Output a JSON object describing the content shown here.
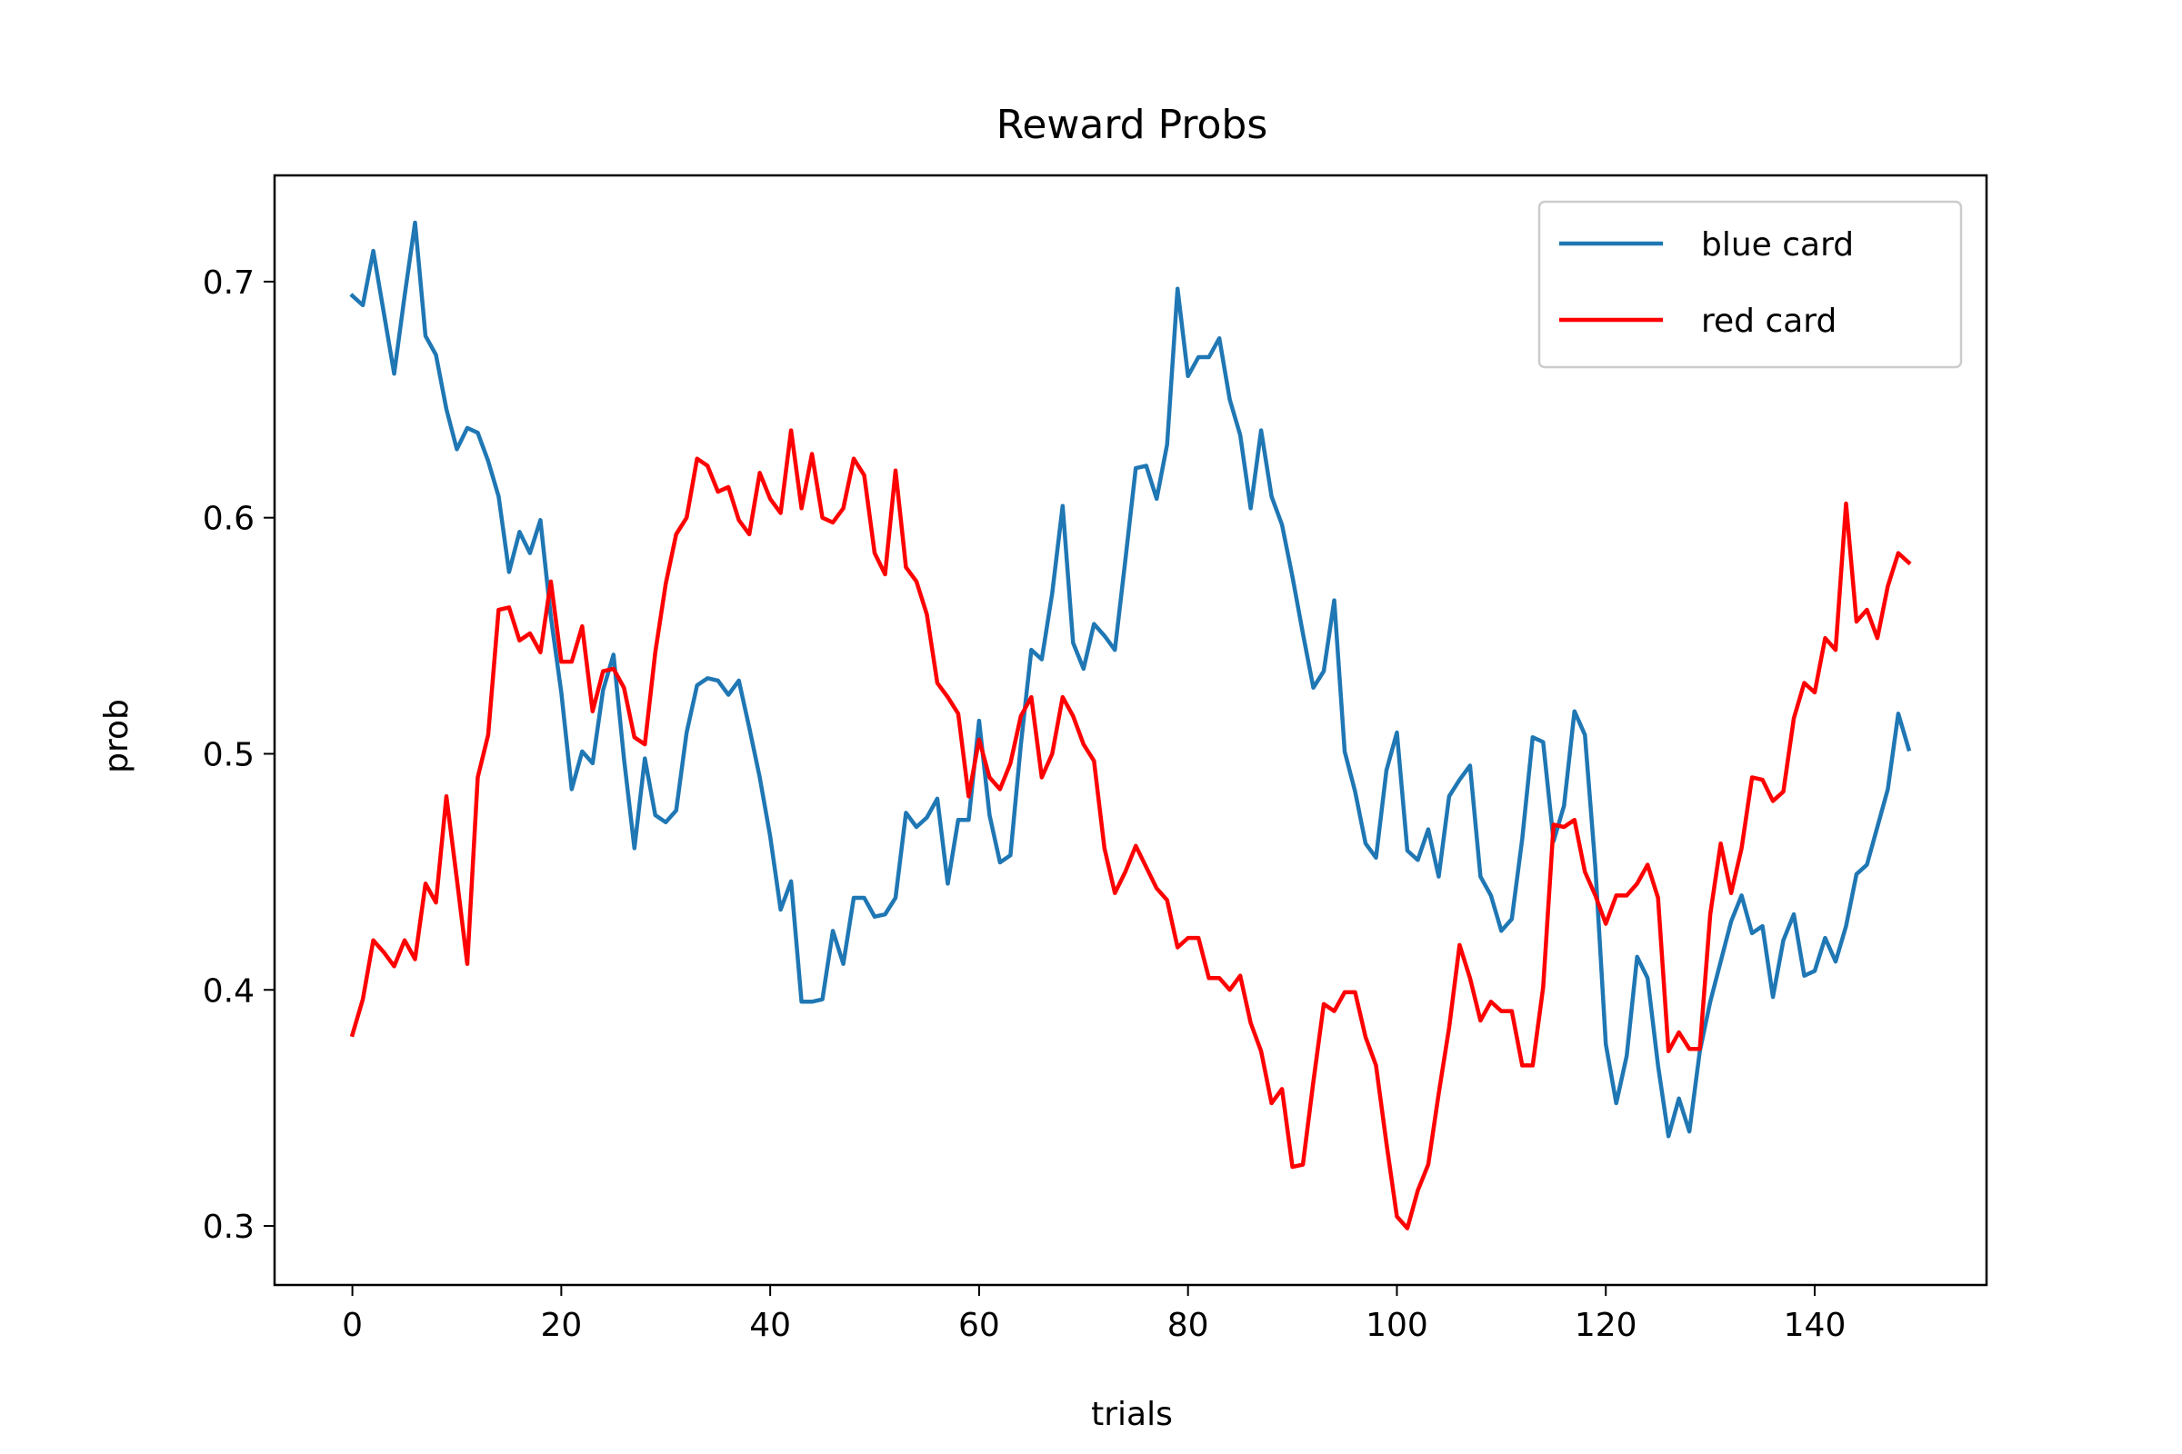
{
  "chart_data": {
    "type": "line",
    "title": "Reward Probs",
    "xlabel": "trials",
    "ylabel": "prob",
    "xlim": [
      -7.45,
      156.45
    ],
    "ylim": [
      0.275,
      0.745
    ],
    "xticks": [
      0,
      20,
      40,
      60,
      80,
      100,
      120,
      140
    ],
    "xtick_labels": [
      "0",
      "20",
      "40",
      "60",
      "80",
      "100",
      "120",
      "140"
    ],
    "yticks": [
      0.3,
      0.4,
      0.5,
      0.6,
      0.7
    ],
    "ytick_labels": [
      "0.3",
      "0.4",
      "0.5",
      "0.6",
      "0.7"
    ],
    "grid": false,
    "legend_position": "top-right",
    "series": [
      {
        "name": "blue card",
        "color": "#1f77b4",
        "x": [
          0,
          1,
          2,
          3,
          4,
          5,
          6,
          7,
          8,
          9,
          10,
          11,
          12,
          13,
          14,
          15,
          16,
          17,
          18,
          19,
          20,
          21,
          22,
          23,
          24,
          25,
          26,
          27,
          28,
          29,
          30,
          31,
          32,
          33,
          34,
          35,
          36,
          37,
          38,
          39,
          40,
          41,
          42,
          43,
          44,
          45,
          46,
          47,
          48,
          49,
          50,
          51,
          52,
          53,
          54,
          55,
          56,
          57,
          58,
          59,
          60,
          61,
          62,
          63,
          64,
          65,
          66,
          67,
          68,
          69,
          70,
          71,
          72,
          73,
          74,
          75,
          76,
          77,
          78,
          79,
          80,
          81,
          82,
          83,
          84,
          85,
          86,
          87,
          88,
          89,
          90,
          91,
          92,
          93,
          94,
          95,
          96,
          97,
          98,
          99,
          100,
          101,
          102,
          103,
          104,
          105,
          106,
          107,
          108,
          109,
          110,
          111,
          112,
          113,
          114,
          115,
          116,
          117,
          118,
          119,
          120,
          121,
          122,
          123,
          124,
          125,
          126,
          127,
          128,
          129,
          130,
          131,
          132,
          133,
          134,
          135,
          136,
          137,
          138,
          139,
          140,
          141,
          142,
          143,
          144,
          145,
          146,
          147,
          148,
          149
        ],
        "values": [
          0.694,
          0.69,
          0.713,
          0.687,
          0.661,
          0.694,
          0.725,
          0.677,
          0.669,
          0.646,
          0.629,
          0.638,
          0.636,
          0.624,
          0.609,
          0.577,
          0.594,
          0.585,
          0.599,
          0.558,
          0.526,
          0.485,
          0.501,
          0.496,
          0.527,
          0.542,
          0.498,
          0.46,
          0.498,
          0.474,
          0.471,
          0.476,
          0.509,
          0.529,
          0.532,
          0.531,
          0.525,
          0.531,
          0.511,
          0.49,
          0.465,
          0.434,
          0.446,
          0.395,
          0.395,
          0.396,
          0.425,
          0.411,
          0.439,
          0.439,
          0.431,
          0.432,
          0.439,
          0.475,
          0.469,
          0.473,
          0.481,
          0.445,
          0.472,
          0.472,
          0.514,
          0.474,
          0.454,
          0.457,
          0.504,
          0.544,
          0.54,
          0.568,
          0.605,
          0.547,
          0.536,
          0.555,
          0.55,
          0.544,
          0.582,
          0.621,
          0.622,
          0.608,
          0.631,
          0.697,
          0.66,
          0.668,
          0.668,
          0.676,
          0.65,
          0.635,
          0.604,
          0.637,
          0.609,
          0.597,
          0.575,
          0.551,
          0.528,
          0.535,
          0.565,
          0.501,
          0.484,
          0.462,
          0.456,
          0.493,
          0.509,
          0.459,
          0.455,
          0.468,
          0.448,
          0.482,
          0.489,
          0.495,
          0.448,
          0.44,
          0.425,
          0.43,
          0.464,
          0.507,
          0.505,
          0.463,
          0.478,
          0.518,
          0.508,
          0.452,
          0.377,
          0.352,
          0.372,
          0.414,
          0.405,
          0.368,
          0.338,
          0.354,
          0.34,
          0.374,
          0.395,
          0.412,
          0.429,
          0.44,
          0.424,
          0.427,
          0.397,
          0.421,
          0.432,
          0.406,
          0.408,
          0.422,
          0.412,
          0.427,
          0.449,
          0.453,
          0.469,
          0.485,
          0.517,
          0.502
        ]
      },
      {
        "name": "red card",
        "color": "#ff0000",
        "x": [
          0,
          1,
          2,
          3,
          4,
          5,
          6,
          7,
          8,
          9,
          10,
          11,
          12,
          13,
          14,
          15,
          16,
          17,
          18,
          19,
          20,
          21,
          22,
          23,
          24,
          25,
          26,
          27,
          28,
          29,
          30,
          31,
          32,
          33,
          34,
          35,
          36,
          37,
          38,
          39,
          40,
          41,
          42,
          43,
          44,
          45,
          46,
          47,
          48,
          49,
          50,
          51,
          52,
          53,
          54,
          55,
          56,
          57,
          58,
          59,
          60,
          61,
          62,
          63,
          64,
          65,
          66,
          67,
          68,
          69,
          70,
          71,
          72,
          73,
          74,
          75,
          76,
          77,
          78,
          79,
          80,
          81,
          82,
          83,
          84,
          85,
          86,
          87,
          88,
          89,
          90,
          91,
          92,
          93,
          94,
          95,
          96,
          97,
          98,
          99,
          100,
          101,
          102,
          103,
          104,
          105,
          106,
          107,
          108,
          109,
          110,
          111,
          112,
          113,
          114,
          115,
          116,
          117,
          118,
          119,
          120,
          121,
          122,
          123,
          124,
          125,
          126,
          127,
          128,
          129,
          130,
          131,
          132,
          133,
          134,
          135,
          136,
          137,
          138,
          139,
          140,
          141,
          142,
          143,
          144,
          145,
          146,
          147,
          148,
          149
        ],
        "values": [
          0.381,
          0.396,
          0.421,
          0.416,
          0.41,
          0.421,
          0.413,
          0.445,
          0.437,
          0.482,
          0.447,
          0.411,
          0.49,
          0.508,
          0.561,
          0.562,
          0.548,
          0.551,
          0.543,
          0.573,
          0.539,
          0.539,
          0.554,
          0.518,
          0.535,
          0.536,
          0.528,
          0.507,
          0.504,
          0.543,
          0.572,
          0.593,
          0.6,
          0.625,
          0.622,
          0.611,
          0.613,
          0.599,
          0.593,
          0.619,
          0.608,
          0.602,
          0.637,
          0.604,
          0.627,
          0.6,
          0.598,
          0.604,
          0.625,
          0.618,
          0.585,
          0.576,
          0.62,
          0.579,
          0.573,
          0.559,
          0.53,
          0.524,
          0.517,
          0.482,
          0.506,
          0.49,
          0.485,
          0.496,
          0.516,
          0.524,
          0.49,
          0.5,
          0.524,
          0.516,
          0.504,
          0.497,
          0.46,
          0.441,
          0.45,
          0.461,
          0.452,
          0.443,
          0.438,
          0.418,
          0.422,
          0.422,
          0.405,
          0.405,
          0.4,
          0.406,
          0.386,
          0.374,
          0.352,
          0.358,
          0.325,
          0.326,
          0.361,
          0.394,
          0.391,
          0.399,
          0.399,
          0.38,
          0.368,
          0.335,
          0.304,
          0.299,
          0.315,
          0.326,
          0.356,
          0.384,
          0.419,
          0.405,
          0.387,
          0.395,
          0.391,
          0.391,
          0.368,
          0.368,
          0.401,
          0.47,
          0.469,
          0.472,
          0.45,
          0.44,
          0.428,
          0.44,
          0.44,
          0.445,
          0.453,
          0.439,
          0.374,
          0.382,
          0.375,
          0.375,
          0.432,
          0.462,
          0.441,
          0.46,
          0.49,
          0.489,
          0.48,
          0.484,
          0.515,
          0.53,
          0.526,
          0.549,
          0.544,
          0.606,
          0.556,
          0.561,
          0.549,
          0.571,
          0.585,
          0.581
        ]
      }
    ]
  }
}
